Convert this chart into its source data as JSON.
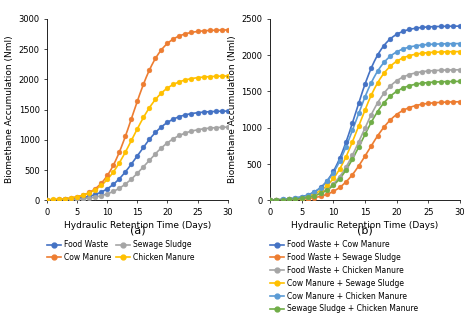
{
  "panel_a": {
    "ylabel": "Biomethane Accumulation (Nml)",
    "xlabel": "Hydraulic Retention Time (Days)",
    "xlim": [
      0,
      30
    ],
    "ylim": [
      0,
      3000
    ],
    "yticks": [
      0,
      500,
      1000,
      1500,
      2000,
      2500,
      3000
    ],
    "xticks": [
      0,
      5,
      10,
      15,
      20,
      25,
      30
    ],
    "series": [
      {
        "label": "Food Waste",
        "color": "#4472C4",
        "L": 1480,
        "k": 0.38,
        "x0": 15.0
      },
      {
        "label": "Cow Manure",
        "color": "#ED7D31",
        "L": 2820,
        "k": 0.42,
        "x0": 14.2
      },
      {
        "label": "Sewage Sludge",
        "color": "#A5A5A5",
        "L": 1220,
        "k": 0.36,
        "x0": 16.5
      },
      {
        "label": "Chicken Manure",
        "color": "#FFC000",
        "L": 2060,
        "k": 0.38,
        "x0": 14.2
      }
    ],
    "legend_ncol": 2,
    "panel_label": "(a)"
  },
  "panel_b": {
    "ylabel": "Biomethane Accumulation (Nml)",
    "xlabel": "Hydraulic Retention Time (Days)",
    "xlim": [
      0,
      30
    ],
    "ylim": [
      0,
      2500
    ],
    "yticks": [
      0,
      500,
      1000,
      1500,
      2000,
      2500
    ],
    "xticks": [
      0,
      5,
      10,
      15,
      20,
      25,
      30
    ],
    "series": [
      {
        "label": "Food Waste + Cow Manure",
        "color": "#4472C4",
        "L": 2400,
        "k": 0.46,
        "x0": 13.5
      },
      {
        "label": "Food Waste + Sewage Sludge",
        "color": "#ED7D31",
        "L": 1360,
        "k": 0.42,
        "x0": 15.5
      },
      {
        "label": "Food Waste + Chicken Manure",
        "color": "#A5A5A5",
        "L": 1800,
        "k": 0.43,
        "x0": 14.5
      },
      {
        "label": "Cow Manure + Sewage Sludge",
        "color": "#FFC000",
        "L": 2050,
        "k": 0.44,
        "x0": 14.0
      },
      {
        "label": "Cow Manure + Chicken Manure",
        "color": "#5B9BD5",
        "L": 2160,
        "k": 0.44,
        "x0": 13.5
      },
      {
        "label": "Sewage Sludge + Chicken Manure",
        "color": "#70AD47",
        "L": 1640,
        "k": 0.43,
        "x0": 14.5
      }
    ],
    "legend_ncol": 1,
    "panel_label": "(b)"
  },
  "background_color": "#FFFFFF",
  "marker": "o",
  "markersize": 3.5,
  "linewidth": 1.2,
  "fontsize_label": 6.5,
  "fontsize_tick": 6,
  "fontsize_legend": 5.5,
  "fontsize_panel": 8
}
